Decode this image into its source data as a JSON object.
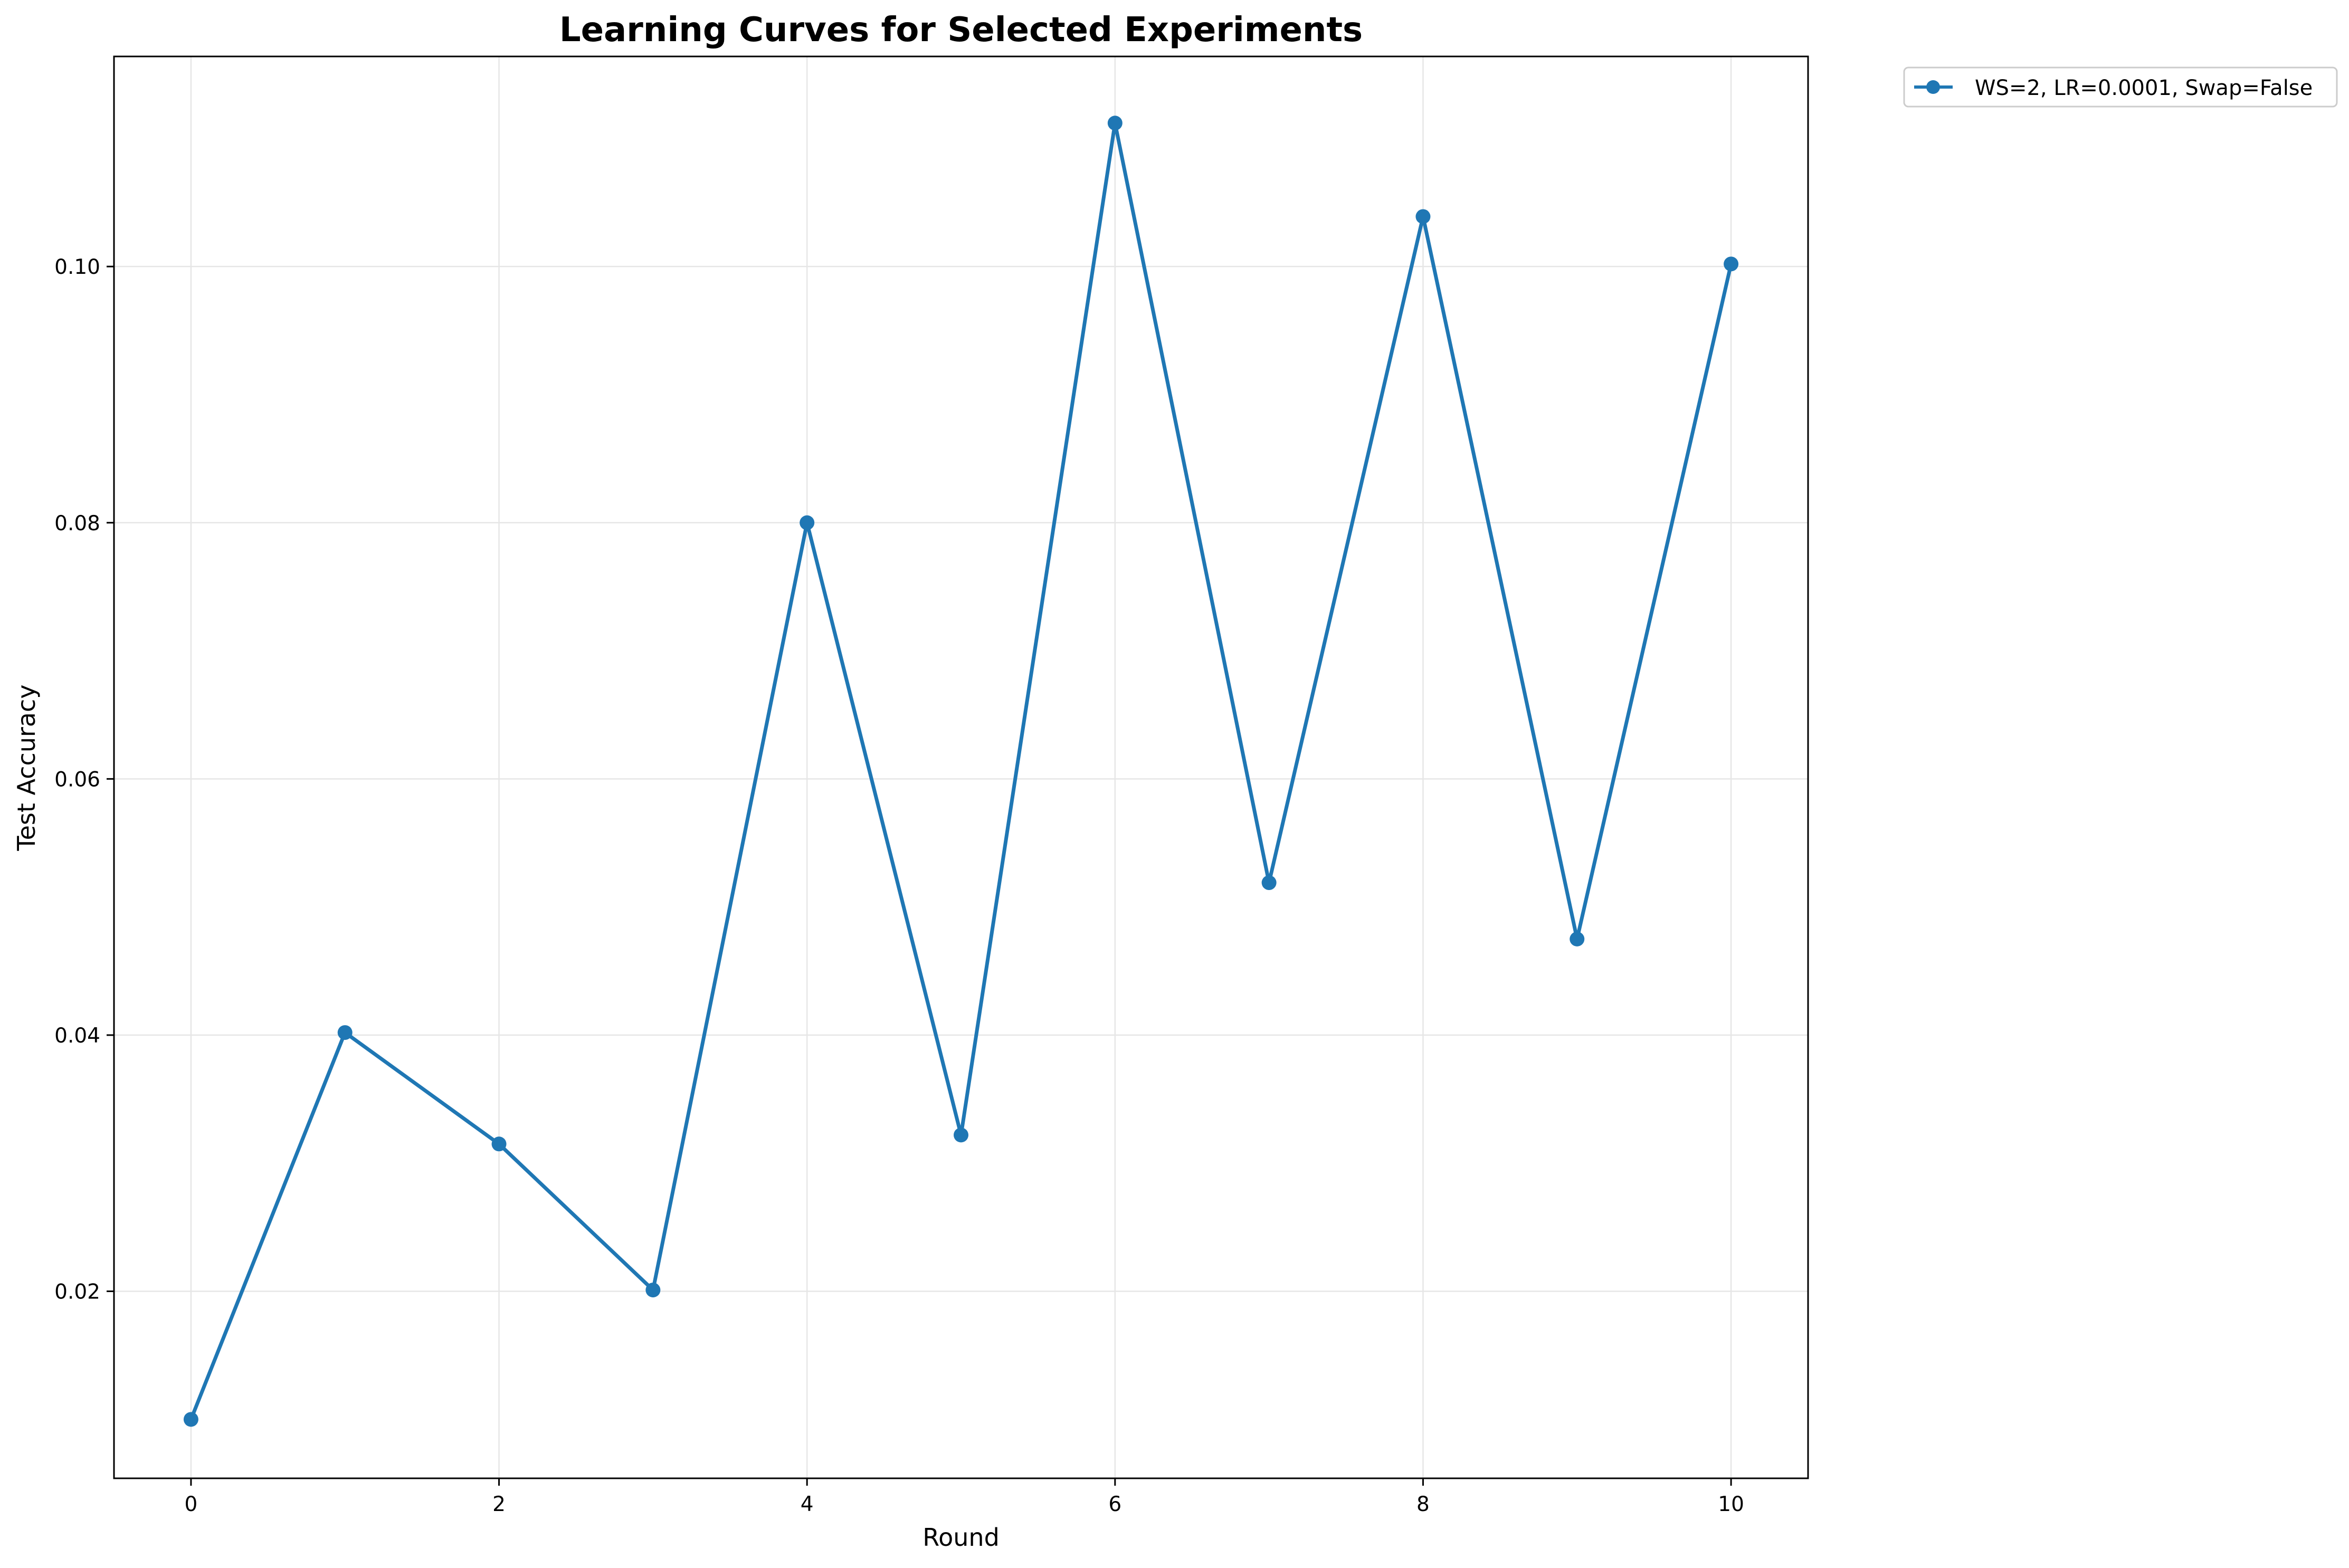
{
  "chart_data": {
    "type": "line",
    "title": "Learning Curves for Selected Experiments",
    "xlabel": "Round",
    "ylabel": "Test Accuracy",
    "xlim": [
      -0.5,
      10.5
    ],
    "ylim": [
      0.0054,
      0.1164
    ],
    "x_ticks": [
      0,
      2,
      4,
      6,
      8,
      10
    ],
    "x_tick_labels": [
      "0",
      "2",
      "4",
      "6",
      "8",
      "10"
    ],
    "y_ticks": [
      0.02,
      0.04,
      0.06,
      0.08,
      0.1
    ],
    "y_tick_labels": [
      "0.02",
      "0.04",
      "0.06",
      "0.08",
      "0.10"
    ],
    "grid": true,
    "legend_position": "outside-top-right",
    "series": [
      {
        "name": "WS=2, LR=0.0001, Swap=False",
        "color": "#1f77b4",
        "marker": "circle",
        "x": [
          0,
          1,
          2,
          3,
          4,
          5,
          6,
          7,
          8,
          9,
          10
        ],
        "values": [
          0.01,
          0.0402,
          0.0315,
          0.0201,
          0.08,
          0.0322,
          0.1112,
          0.0519,
          0.1039,
          0.0475,
          0.1002
        ]
      }
    ]
  }
}
